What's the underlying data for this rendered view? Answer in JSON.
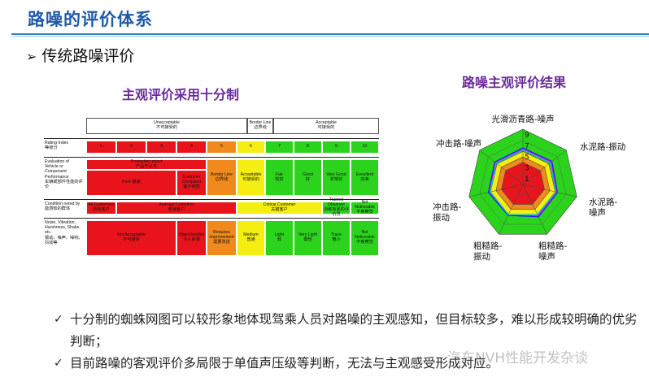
{
  "title": "路噪的评价体系",
  "section": {
    "bullet": "➢",
    "label": "传统路噪评价"
  },
  "left_caption": "主观评价采用十分制",
  "right_caption": "路噪主观评价结果",
  "table": {
    "header": {
      "unacceptable": "Unacceptable\n不可接受的",
      "border": "Border Line\n边界线",
      "acceptable": "Acceptable\n可接受的"
    },
    "rating_label": "Rating Index\n等级分",
    "ratings": [
      "1",
      "2",
      "3",
      "4",
      "5",
      "6",
      "7",
      "8",
      "9",
      "10"
    ],
    "evaluation_label": "Evaluation of\nVehicle   or\nComponent\nPerformance\n车辆或部件性能的评价",
    "evaluation": {
      "production_reject": "Production reject\n产品不认可",
      "poor": "Poor 极差",
      "customer_complaint": "Customer\nComplaint\n客户抱怨",
      "border_line": "Border Line\n边界线",
      "acceptable": "Acceptable\n可接受的",
      "fair": "Fair\n较好",
      "good": "Good\n好",
      "very_good": "Very Good\n非常好",
      "excellent": "Excellent\n完美"
    },
    "condition_label": "Condition noted by\n能感知的群体",
    "condition": {
      "all_customers": "All Customers\n所有客户",
      "average_customer": "Average Customer\n普通客户",
      "critical_customer": "Critical Customer\n关键客户",
      "trained_observer": "Trained Observer\n训练有素的评价员",
      "not_noticeable": "Not Noticeable\n不被察觉"
    },
    "nvh_label": "Noise, Vibration,\nHarshness, Shake,\netc.\n振动、噪声、噪响、抖动等",
    "nvh": {
      "not_acceptable": "Not Acceptable\n不可接受",
      "objectionable": "Objectionable\n令人反感",
      "requires_improvement": "Requires\nImprovement\n需要改进",
      "medium": "Medium\n普通",
      "light": "Light\n轻",
      "very_light": "Very Light\n很轻",
      "trace": "Trace\n微小",
      "not_noticeable": "Not Noticeable\n不被察觉"
    },
    "colors": {
      "red": "#e8131b",
      "orange": "#f08a1c",
      "yellow": "#f5ee13",
      "green": "#2bd31c"
    }
  },
  "chart_data": {
    "type": "radar",
    "axes": [
      "光滑沥青路-噪声",
      "水泥路-振动",
      "水泥路-噪声",
      "粗糙路-噪声",
      "粗糙路-振动",
      "冲击路-振动",
      "冲击路-噪声"
    ],
    "ticks": [
      "1",
      "3",
      "5",
      "7",
      "9"
    ],
    "range": [
      0,
      10
    ],
    "series": [
      {
        "color": "#ff00ff",
        "values": [
          6.4,
          6.5,
          6.3,
          6.3,
          6.2,
          6.3,
          6.3
        ]
      },
      {
        "color": "#1a1aff",
        "values": [
          6.6,
          6.7,
          6.4,
          6.5,
          6.2,
          6.4,
          6.5
        ]
      },
      {
        "color": "#00cccc",
        "values": [
          6.2,
          6.3,
          6.1,
          6.0,
          6.1,
          6.0,
          6.2
        ]
      }
    ],
    "bands": [
      {
        "from": 0,
        "to": 4,
        "color": "#e8131b"
      },
      {
        "from": 4,
        "to": 5,
        "color": "#f08a1c"
      },
      {
        "from": 5,
        "to": 6,
        "color": "#f5ee13"
      },
      {
        "from": 6,
        "to": 10,
        "color": "#2bd31c"
      }
    ]
  },
  "bullets": [
    {
      "icon": "✓",
      "text": "十分制的蜘蛛网图可以较形象地体现驾乘人员对路噪的主观感知，但目标较多，难以形成较明确的优劣判断；"
    },
    {
      "icon": "✓",
      "text": "目前路噪的客观评价多局限于单值声压级等判断，无法与主观感受形成对应。"
    }
  ],
  "watermark": "汽车NVH性能开发杂谈"
}
